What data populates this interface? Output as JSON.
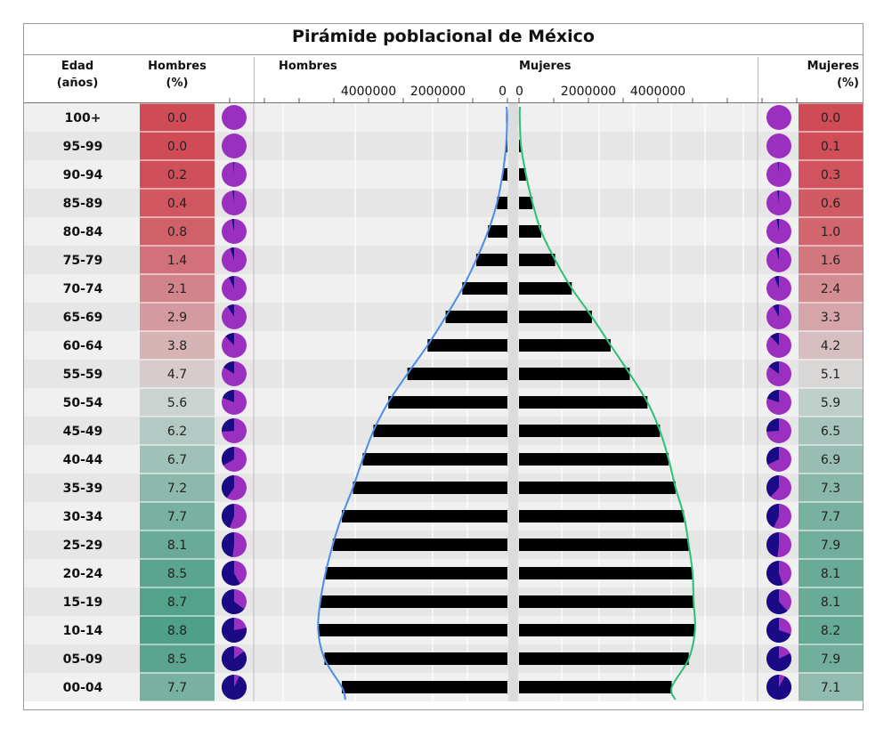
{
  "title": "Pirámide poblacional de México",
  "headers": {
    "age_line1": "Edad",
    "age_line2": "(años)",
    "men_pct_line1": "Hombres",
    "men_pct_line2": "(%)",
    "men_axis": "Hombres",
    "women_axis": "Mujeres",
    "women_pct_line1": "Mujeres",
    "women_pct_line2": "(%)"
  },
  "colors": {
    "bar": "#000000",
    "men_curve": "#4a8ee6",
    "women_curve": "#2bbf7a",
    "pie_main": "#9b2fbf",
    "pie_accent": "#1a0a85",
    "row_even": "#f0f0f0",
    "row_odd": "#e6e6e6",
    "heat_low": "#cf4b55",
    "heat_mid": "#d9d9d9",
    "heat_high": "#4fa088"
  },
  "chart_data": {
    "type": "bar",
    "title": "Pirámide poblacional de México",
    "categories": [
      "100+",
      "95-99",
      "90-94",
      "85-89",
      "80-84",
      "75-79",
      "70-74",
      "65-69",
      "60-64",
      "55-59",
      "50-54",
      "45-49",
      "40-44",
      "35-39",
      "30-34",
      "25-29",
      "20-24",
      "15-19",
      "10-14",
      "05-09",
      "00-04"
    ],
    "men_axis_ticks": [
      "4000000",
      "2000000",
      "0"
    ],
    "women_axis_ticks": [
      "0",
      "2000000",
      "4000000"
    ],
    "axis_range": [
      0,
      8000000
    ],
    "series": [
      {
        "name": "Hombres",
        "values": [
          8000,
          40000,
          140000,
          300000,
          560000,
          900000,
          1300000,
          1780000,
          2300000,
          2880000,
          3430000,
          3860000,
          4170000,
          4450000,
          4770000,
          5030000,
          5240000,
          5390000,
          5450000,
          5270000,
          4770000
        ],
        "percent": [
          "0.0",
          "0.0",
          "0.2",
          "0.4",
          "0.8",
          "1.4",
          "2.1",
          "2.9",
          "3.8",
          "4.7",
          "5.6",
          "6.2",
          "6.7",
          "7.2",
          "7.7",
          "8.1",
          "8.5",
          "8.7",
          "8.8",
          "8.5",
          "7.7"
        ]
      },
      {
        "name": "Mujeres",
        "values": [
          20000,
          60000,
          200000,
          390000,
          640000,
          1040000,
          1520000,
          2100000,
          2640000,
          3190000,
          3700000,
          4060000,
          4310000,
          4510000,
          4750000,
          4890000,
          5000000,
          5030000,
          5070000,
          4890000,
          4400000
        ],
        "percent": [
          "0.0",
          "0.1",
          "0.3",
          "0.6",
          "1.0",
          "1.6",
          "2.4",
          "3.3",
          "4.2",
          "5.1",
          "5.9",
          "6.5",
          "6.9",
          "7.3",
          "7.7",
          "7.9",
          "8.1",
          "8.1",
          "8.2",
          "7.9",
          "7.1"
        ]
      }
    ],
    "pie_dark_fraction": {
      "men": [
        0.0,
        0.0,
        0.01,
        0.02,
        0.03,
        0.05,
        0.07,
        0.09,
        0.12,
        0.16,
        0.19,
        0.26,
        0.33,
        0.4,
        0.44,
        0.48,
        0.58,
        0.65,
        0.78,
        0.85,
        0.93
      ],
      "women": [
        0.0,
        0.0,
        0.01,
        0.02,
        0.03,
        0.04,
        0.06,
        0.08,
        0.12,
        0.15,
        0.2,
        0.26,
        0.32,
        0.38,
        0.43,
        0.48,
        0.55,
        0.62,
        0.7,
        0.82,
        0.92
      ]
    }
  }
}
